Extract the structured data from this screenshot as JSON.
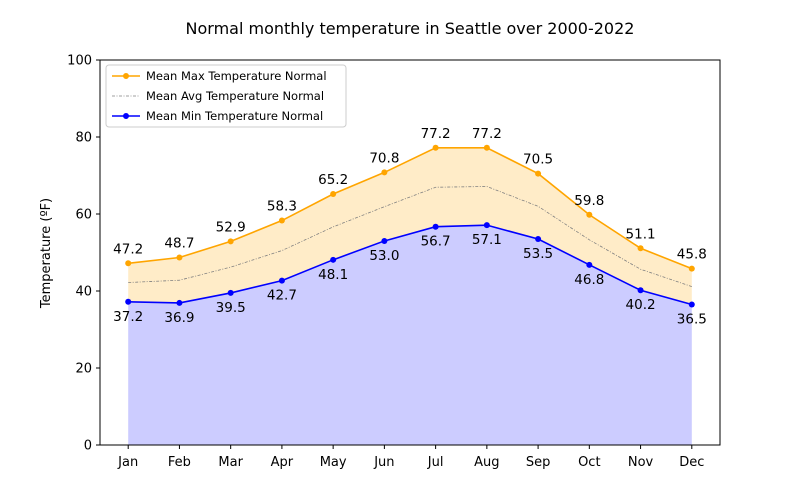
{
  "chart_data": {
    "type": "line",
    "title": "Normal monthly temperature in Seattle over 2000-2022",
    "xlabel": "",
    "ylabel": "Temperature (ºF)",
    "ylim": [
      0,
      100
    ],
    "yticks": [
      0,
      20,
      40,
      60,
      80,
      100
    ],
    "categories": [
      "Jan",
      "Feb",
      "Mar",
      "Apr",
      "May",
      "Jun",
      "Jul",
      "Aug",
      "Sep",
      "Oct",
      "Nov",
      "Dec"
    ],
    "series": [
      {
        "name": "Mean Max Temperature Normal",
        "color": "#ffa500",
        "values": [
          47.2,
          48.7,
          52.9,
          58.3,
          65.2,
          70.8,
          77.2,
          77.2,
          70.5,
          59.8,
          51.1,
          45.8
        ],
        "labels": [
          "47.2",
          "48.7",
          "52.9",
          "58.3",
          "65.2",
          "70.8",
          "77.2",
          "77.2",
          "70.5",
          "59.8",
          "51.1",
          "45.8"
        ]
      },
      {
        "name": "Mean Avg Temperature Normal",
        "color": "#808080",
        "values": [
          42.2,
          42.8,
          46.2,
          50.5,
          56.65,
          61.9,
          66.95,
          67.15,
          62.0,
          53.3,
          45.65,
          41.15
        ]
      },
      {
        "name": "Mean Min Temperature Normal",
        "color": "#0000ff",
        "values": [
          37.2,
          36.9,
          39.5,
          42.7,
          48.1,
          53.0,
          56.7,
          57.1,
          53.5,
          46.8,
          40.2,
          36.5
        ],
        "labels": [
          "37.2",
          "36.9",
          "39.5",
          "42.7",
          "48.1",
          "53.0",
          "56.7",
          "57.1",
          "53.5",
          "46.8",
          "40.2",
          "36.5"
        ]
      }
    ],
    "fill_between_color": "#ffecc8",
    "fill_below_color": "#ccccff",
    "legend_position": "upper-left",
    "grid": false
  }
}
